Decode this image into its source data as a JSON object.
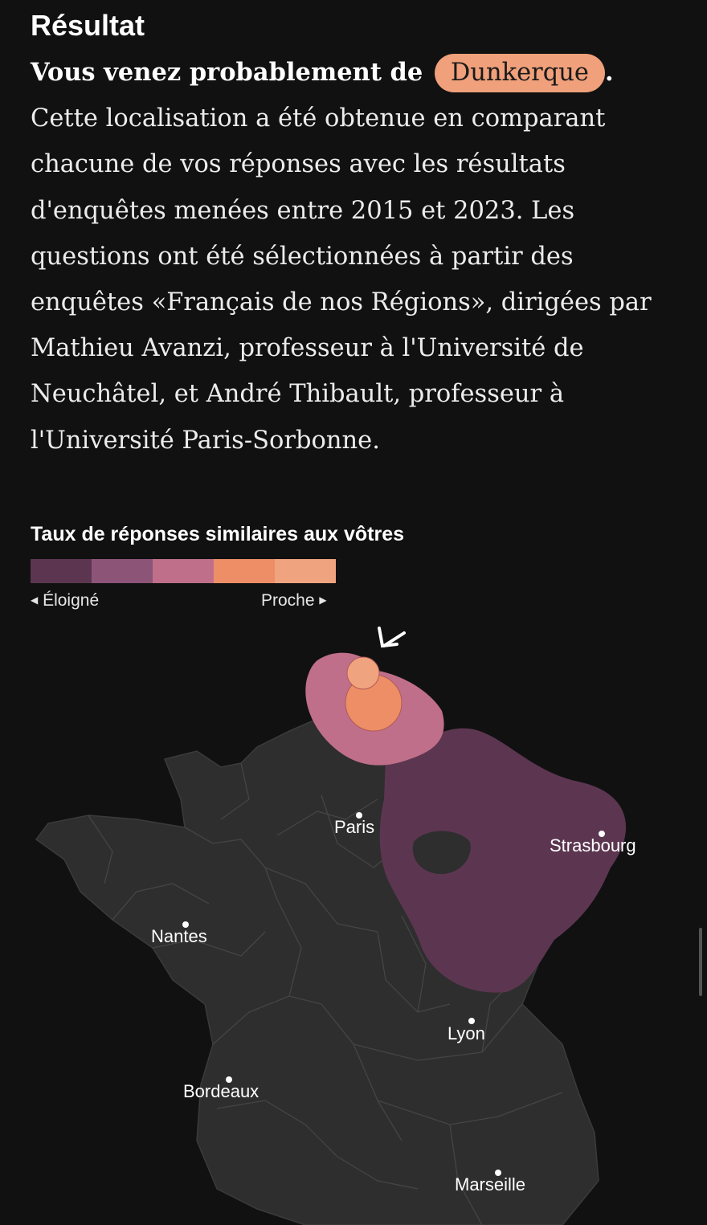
{
  "result": {
    "heading": "Résultat",
    "lead_text": "Vous venez probablement de",
    "city": "Dunkerque",
    "lead_end": ".",
    "description": "Cette localisation a été obtenue en comparant chacune de vos réponses avec les résultats d'enquêtes menées entre 2015 et 2023. Les questions ont été sélectionnées à partir des enquêtes «Français de nos Régions», dirigées par Mathieu Avanzi, professeur à l'Université de Neuchâtel, et André Thibault, professeur à l'Université Paris-Sorbonne."
  },
  "legend": {
    "title": "Taux de réponses similaires aux vôtres",
    "low_label": "Éloigné",
    "high_label": "Proche",
    "low_arrow": "◀",
    "high_arrow": "▶",
    "colors": [
      "#5c3650",
      "#8c5578",
      "#c06f8b",
      "#ee8e66",
      "#f0a37f"
    ]
  },
  "map": {
    "cities": [
      {
        "name": "Paris"
      },
      {
        "name": "Strasbourg"
      },
      {
        "name": "Nantes"
      },
      {
        "name": "Lyon"
      },
      {
        "name": "Bordeaux"
      },
      {
        "name": "Marseille"
      }
    ],
    "zone_colors": {
      "far": "#5c3650",
      "medium": "#c06f8b",
      "close": "#ee8e66",
      "closest": "#f0a37f"
    },
    "marker_icon": "arrow-pointer-icon"
  }
}
